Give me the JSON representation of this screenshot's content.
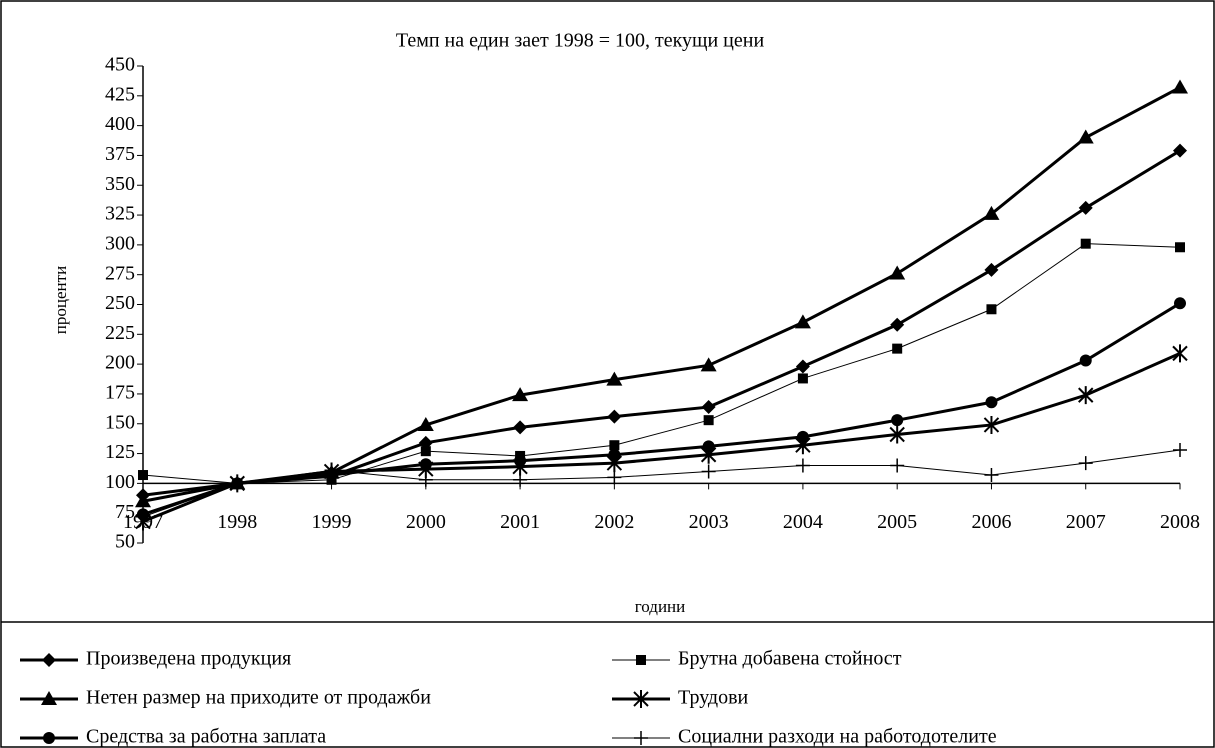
{
  "chart_data": {
    "type": "line",
    "title": "Темп на един зает 1998 = 100, текущи цени",
    "y_label": "проценти",
    "x_label": "години",
    "categories": [
      "1997",
      "1998",
      "1999",
      "2000",
      "2001",
      "2002",
      "2003",
      "2004",
      "2005",
      "2006",
      "2007",
      "2008"
    ],
    "ylim": [
      50,
      450
    ],
    "yticks": [
      50,
      75,
      100,
      125,
      150,
      175,
      200,
      225,
      250,
      275,
      300,
      325,
      350,
      375,
      400,
      425,
      450
    ],
    "x_axis_crosses": 100,
    "series": [
      {
        "name": "Произведена продукция",
        "color": "#000000",
        "marker": "diamond",
        "width": 3,
        "values": [
          90,
          100,
          106,
          134,
          147,
          156,
          164,
          198,
          233,
          279,
          331,
          379
        ]
      },
      {
        "name": "Брутна добавена стойност",
        "color": "#000000",
        "marker": "square",
        "width": 1,
        "values": [
          107,
          100,
          103,
          127,
          123,
          132,
          153,
          188,
          213,
          246,
          301,
          298
        ]
      },
      {
        "name": "Нетен размер на приходите от продажби",
        "color": "#000000",
        "marker": "triangle",
        "width": 3,
        "values": [
          85,
          100,
          109,
          149,
          174,
          187,
          199,
          235,
          276,
          326,
          390,
          432
        ]
      },
      {
        "name": "Трудови",
        "color": "#000000",
        "marker": "star",
        "width": 3,
        "values": [
          68,
          100,
          110,
          112,
          114,
          117,
          124,
          132,
          141,
          149,
          174,
          209
        ]
      },
      {
        "name": "Средства за работна заплата",
        "color": "#000000",
        "marker": "circle",
        "width": 3,
        "values": [
          74,
          100,
          107,
          116,
          119,
          124,
          131,
          139,
          153,
          168,
          203,
          251
        ]
      },
      {
        "name": "Социални разходи на работодотелите",
        "color": "#000000",
        "marker": "plus",
        "width": 1,
        "values": [
          72,
          100,
          111,
          103,
          103,
          105,
          110,
          115,
          115,
          107,
          117,
          128
        ]
      }
    ]
  }
}
